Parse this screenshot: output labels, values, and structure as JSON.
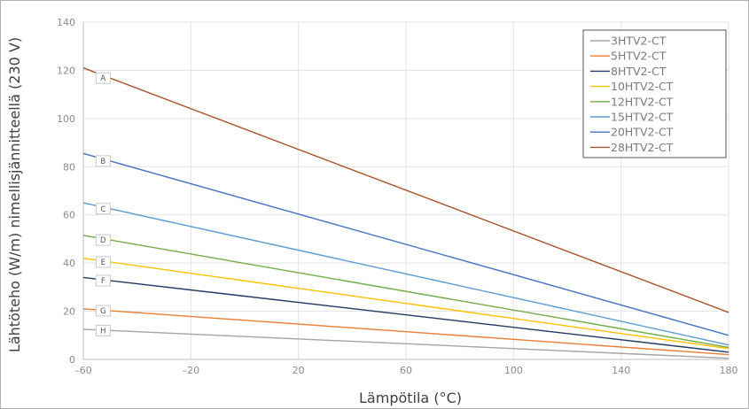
{
  "chart_data": {
    "type": "line",
    "title": "",
    "xlabel": "Lämpötila (°C)",
    "ylabel": "Lähtöteho (W/m) nimellisjännitteellä (230 V)",
    "xlim": [
      -60,
      180
    ],
    "ylim": [
      0,
      140
    ],
    "x_ticks": [
      -60,
      -20,
      20,
      60,
      100,
      140,
      180
    ],
    "x_tick_labels": [
      "–60",
      "–20",
      "20",
      "60",
      "100",
      "140",
      "180"
    ],
    "y_ticks": [
      0,
      20,
      40,
      60,
      80,
      100,
      120,
      140
    ],
    "y_tick_labels": [
      "0",
      "20",
      "40",
      "60",
      "80",
      "100",
      "120",
      "140"
    ],
    "grid": true,
    "legend_position": "top-right",
    "series": [
      {
        "name": "3HTV2-CT",
        "color": "#a5a5a5",
        "label": "H",
        "x": [
          -60,
          180
        ],
        "y": [
          12.5,
          0.5
        ]
      },
      {
        "name": "5HTV2-CT",
        "color": "#ed7d31",
        "label": "G",
        "x": [
          -60,
          180
        ],
        "y": [
          21,
          2
        ]
      },
      {
        "name": "8HTV2-CT",
        "color": "#203864",
        "label": "F",
        "x": [
          -60,
          180
        ],
        "y": [
          34,
          3
        ]
      },
      {
        "name": "10HTV2-CT",
        "color": "#ffc000",
        "label": "E",
        "x": [
          -60,
          180
        ],
        "y": [
          42,
          4.5
        ]
      },
      {
        "name": "12HTV2-CT",
        "color": "#70ad47",
        "label": "D",
        "x": [
          -60,
          180
        ],
        "y": [
          51.5,
          5
        ]
      },
      {
        "name": "15HTV2-CT",
        "color": "#5b9bd5",
        "label": "C",
        "x": [
          -60,
          180
        ],
        "y": [
          65,
          6
        ]
      },
      {
        "name": "20HTV2-CT",
        "color": "#4472c4",
        "label": "B",
        "x": [
          -60,
          180
        ],
        "y": [
          85.5,
          10
        ]
      },
      {
        "name": "28HTV2-CT",
        "color": "#a9532a",
        "label": "A",
        "x": [
          -60,
          180
        ],
        "y": [
          121,
          19.5
        ]
      }
    ],
    "marker_x": -50
  }
}
